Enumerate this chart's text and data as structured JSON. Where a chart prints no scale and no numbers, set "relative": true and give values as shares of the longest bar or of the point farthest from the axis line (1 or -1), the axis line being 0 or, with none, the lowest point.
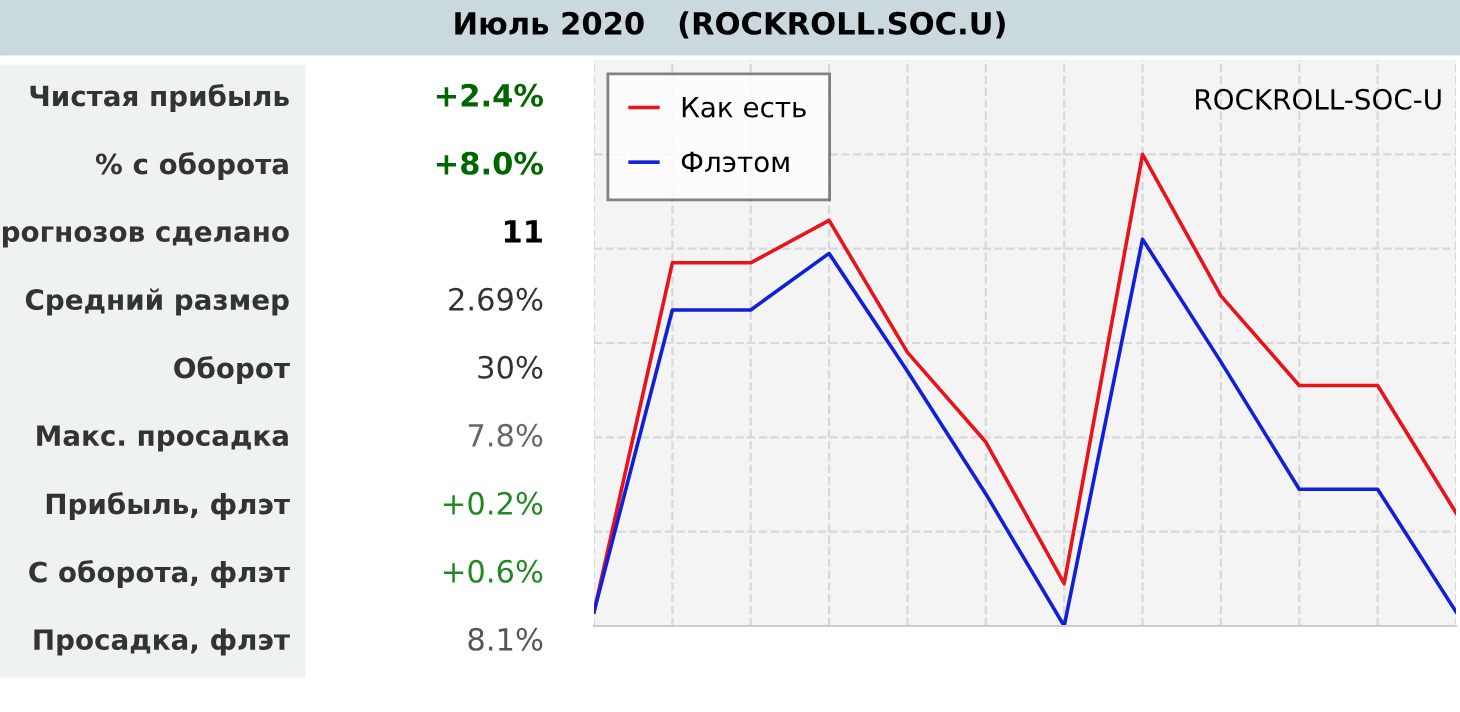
{
  "chart_data": {
    "type": "line",
    "title": "Июль 2020   (ROCKROLL.SOC.U)",
    "relative": true,
    "grid": true,
    "legend": "top left",
    "line_style": "solid",
    "categories": [
      null,
      null,
      null,
      null,
      null,
      null,
      null,
      null,
      null,
      null,
      null,
      null
    ],
    "series": [
      {
        "name": "Как есть",
        "color": "#e8141c",
        "values": [
          0.03,
          0.77,
          0.77,
          0.86,
          0.58,
          0.39,
          0.09,
          1,
          0.7,
          0.51,
          0.51,
          0.24
        ]
      },
      {
        "name": "Флэтом",
        "color": "#1020d8",
        "values": [
          0.03,
          0.67,
          0.67,
          0.79,
          0.54,
          0.28,
          0,
          0.82,
          0.56,
          0.29,
          0.29,
          0.03
        ]
      }
    ],
    "annotations": [
      "ROCKROLL-SOC-U",
      "Чистая прибыль",
      "+2.4%",
      "% с оборота",
      "+8.0%",
      "рогнозов сделано",
      "11",
      "Средний размер",
      "2.69%",
      "Оборот",
      "30%",
      "Макс. просадка",
      "7.8%",
      "Прибыль, флэт",
      "+0.2%",
      "С оборота, флэт",
      "+0.6%",
      "Просадка, флэт",
      "8.1%"
    ]
  }
}
